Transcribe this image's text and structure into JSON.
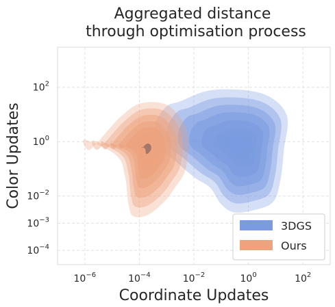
{
  "chart_data": {
    "type": "density-contour",
    "title": [
      "Aggregated distance",
      "through optimisation process"
    ],
    "xlabel": "Coordinate Updates",
    "ylabel": "Color Updates",
    "x_scale": "log",
    "y_scale": "log",
    "xlim": [
      1e-07,
      1000.0
    ],
    "ylim": [
      3e-05,
      3000.0
    ],
    "x_ticks": [
      {
        "value": 1e-06,
        "base": "10",
        "exp": "−6"
      },
      {
        "value": 0.0001,
        "base": "10",
        "exp": "−4"
      },
      {
        "value": 0.01,
        "base": "10",
        "exp": "−2"
      },
      {
        "value": 1,
        "base": "10",
        "exp": "0"
      },
      {
        "value": 100,
        "base": "10",
        "exp": "2"
      }
    ],
    "y_ticks": [
      {
        "value": 100,
        "base": "10",
        "exp": "2"
      },
      {
        "value": 1,
        "base": "10",
        "exp": "0"
      },
      {
        "value": 0.01,
        "base": "10",
        "exp": "−2"
      },
      {
        "value": 0.001,
        "base": "10",
        "exp": "−3"
      },
      {
        "value": 0.0001,
        "base": "10",
        "exp": "−4"
      }
    ],
    "grid": true,
    "legend_position": "bottom-right",
    "series": [
      {
        "name": "3DGS",
        "color": "#7b9be0",
        "peak": {
          "x": 0.6,
          "y": 0.65
        },
        "outer_contour": [
          [
            0.003,
            30
          ],
          [
            0.05,
            80
          ],
          [
            3,
            60
          ],
          [
            25,
            10
          ],
          [
            20,
            0.5
          ],
          [
            15,
            0.04
          ],
          [
            8,
            0.006
          ],
          [
            1.5,
            0.003
          ],
          [
            0.3,
            0.0025
          ],
          [
            0.1,
            0.005
          ],
          [
            0.04,
            0.02
          ],
          [
            0.01,
            0.05
          ],
          [
            0.002,
            0.2
          ],
          [
            0.0004,
            0.8
          ],
          [
            0.0004,
            5
          ],
          [
            0.001,
            20
          ]
        ],
        "levels": [
          {
            "opacity": 0.32,
            "scale": 1.0
          },
          {
            "opacity": 0.4,
            "scale": 0.86
          },
          {
            "opacity": 0.48,
            "scale": 0.73
          },
          {
            "opacity": 0.56,
            "scale": 0.6
          },
          {
            "opacity": 0.66,
            "scale": 0.46
          },
          {
            "opacity": 0.76,
            "scale": 0.32
          },
          {
            "opacity": 0.88,
            "scale": 0.2
          },
          {
            "opacity": 1.0,
            "scale": 0.1
          }
        ]
      },
      {
        "name": "Ours",
        "color": "#eda37e",
        "peak": {
          "x": 0.0002,
          "y": 0.6
        },
        "outer_contour": [
          [
            2e-05,
            8
          ],
          [
            0.0001,
            25
          ],
          [
            0.0008,
            25
          ],
          [
            0.003,
            8
          ],
          [
            0.006,
            1.5
          ],
          [
            0.005,
            0.1
          ],
          [
            0.002,
            0.02
          ],
          [
            0.0008,
            0.006
          ],
          [
            0.0002,
            0.002
          ],
          [
            6e-05,
            0.0018
          ],
          [
            4e-05,
            0.005
          ],
          [
            3e-05,
            0.05
          ],
          [
            1.5e-05,
            0.3
          ],
          [
            1e-06,
            1.2
          ],
          [
            1.5e-06,
            0.5
          ],
          [
            8e-06,
            3
          ]
        ],
        "levels": [
          {
            "opacity": 0.32,
            "scale": 1.0
          },
          {
            "opacity": 0.4,
            "scale": 0.86
          },
          {
            "opacity": 0.5,
            "scale": 0.72
          },
          {
            "opacity": 0.6,
            "scale": 0.58
          },
          {
            "opacity": 0.7,
            "scale": 0.45
          },
          {
            "opacity": 0.8,
            "scale": 0.33
          },
          {
            "opacity": 0.88,
            "scale": 0.22
          },
          {
            "opacity": 0.95,
            "scale": 0.12
          }
        ],
        "core_color": "#8a6a66"
      }
    ]
  }
}
